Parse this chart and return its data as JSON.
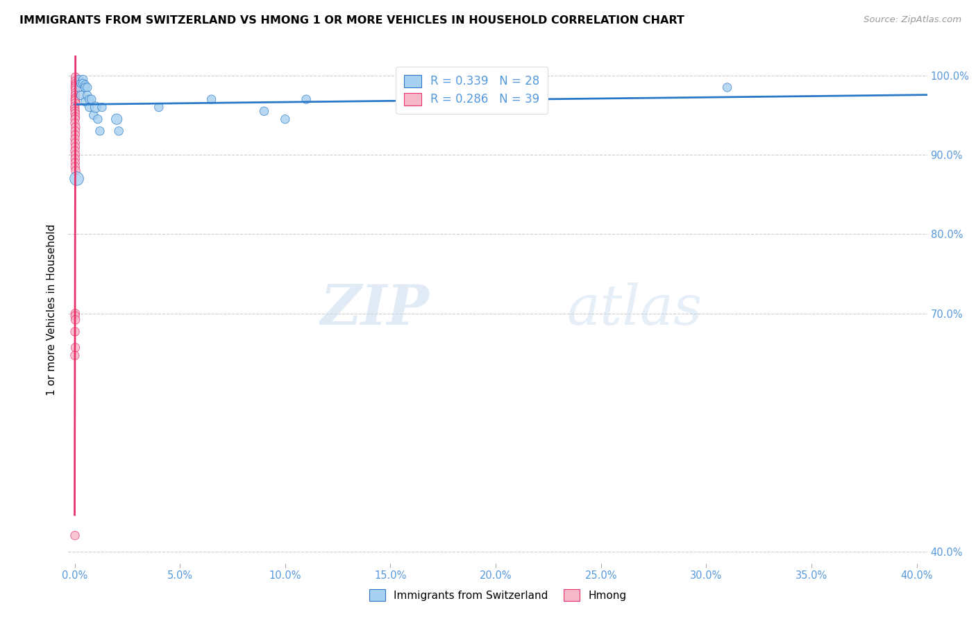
{
  "title": "IMMIGRANTS FROM SWITZERLAND VS HMONG 1 OR MORE VEHICLES IN HOUSEHOLD CORRELATION CHART",
  "source": "Source: ZipAtlas.com",
  "ylabel": "1 or more Vehicles in Household",
  "ytick_labels": [
    "100.0%",
    "90.0%",
    "80.0%",
    "70.0%",
    "40.0%"
  ],
  "ytick_values": [
    1.0,
    0.9,
    0.8,
    0.7,
    0.4
  ],
  "xlim": [
    -0.003,
    0.405
  ],
  "ylim": [
    0.385,
    1.025
  ],
  "legend_label1": "Immigrants from Switzerland",
  "legend_label2": "Hmong",
  "r1": 0.339,
  "n1": 28,
  "r2": 0.286,
  "n2": 39,
  "color_swiss": "#A8D0F0",
  "color_hmong": "#F5B8C8",
  "trendline_color_swiss": "#2979C8",
  "trendline_color_hmong": "#E8306A",
  "background_color": "#FFFFFF",
  "watermark_zip": "ZIP",
  "watermark_atlas": "atlas",
  "swiss_x": [
    0.001,
    0.002,
    0.002,
    0.003,
    0.003,
    0.004,
    0.004,
    0.005,
    0.005,
    0.005,
    0.006,
    0.006,
    0.007,
    0.007,
    0.008,
    0.009,
    0.01,
    0.011,
    0.012,
    0.013,
    0.02,
    0.021,
    0.04,
    0.065,
    0.09,
    0.1,
    0.11,
    0.31
  ],
  "swiss_y": [
    0.87,
    0.985,
    0.995,
    0.99,
    0.975,
    0.995,
    0.99,
    0.988,
    0.985,
    0.967,
    0.985,
    0.975,
    0.97,
    0.96,
    0.97,
    0.95,
    0.96,
    0.945,
    0.93,
    0.96,
    0.945,
    0.93,
    0.96,
    0.97,
    0.955,
    0.945,
    0.97,
    0.985
  ],
  "swiss_sizes": [
    200,
    80,
    80,
    80,
    80,
    80,
    80,
    80,
    80,
    80,
    80,
    80,
    80,
    80,
    80,
    80,
    120,
    80,
    80,
    80,
    120,
    80,
    80,
    80,
    80,
    80,
    80,
    80
  ],
  "hmong_x": [
    0.0003,
    0.0003,
    0.0003,
    0.0003,
    0.0003,
    0.0003,
    0.0003,
    0.0003,
    0.0003,
    0.0003,
    0.0003,
    0.0003,
    0.0003,
    0.0003,
    0.0003,
    0.0003,
    0.0003,
    0.0003,
    0.0003,
    0.0003,
    0.0003,
    0.0003,
    0.0003,
    0.0003,
    0.0003,
    0.0003,
    0.0003,
    0.0003,
    0.0003,
    0.0003,
    0.0003,
    0.0003,
    0.0003,
    0.0003,
    0.0003,
    0.0003,
    0.0003,
    0.0003,
    0.0003
  ],
  "hmong_y": [
    0.998,
    0.993,
    0.99,
    0.988,
    0.986,
    0.984,
    0.982,
    0.978,
    0.975,
    0.972,
    0.97,
    0.968,
    0.965,
    0.961,
    0.958,
    0.955,
    0.952,
    0.948,
    0.945,
    0.94,
    0.935,
    0.93,
    0.925,
    0.92,
    0.915,
    0.91,
    0.905,
    0.9,
    0.895,
    0.89,
    0.885,
    0.88,
    0.7,
    0.697,
    0.692,
    0.677,
    0.657,
    0.647,
    0.42
  ],
  "hmong_sizes": [
    80,
    80,
    80,
    80,
    80,
    80,
    80,
    80,
    80,
    80,
    80,
    80,
    80,
    80,
    80,
    80,
    80,
    80,
    80,
    80,
    80,
    80,
    80,
    80,
    80,
    80,
    80,
    80,
    80,
    80,
    80,
    80,
    80,
    80,
    80,
    80,
    80,
    80,
    80
  ],
  "grid_color": "#CCCCCC",
  "tick_color": "#5599DD"
}
